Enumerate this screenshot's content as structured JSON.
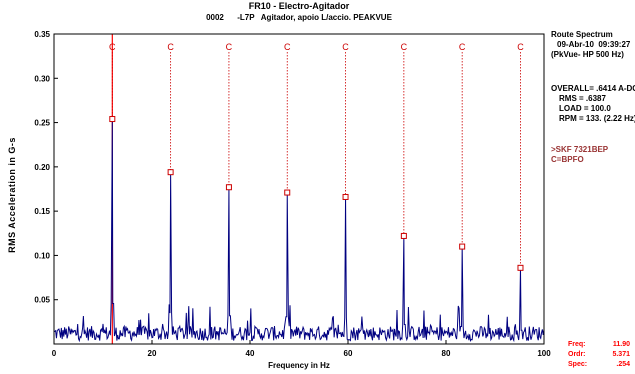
{
  "header": {
    "title": "FR10 - Electro-Agitador",
    "point_code": "0002",
    "point_id": "-L7P",
    "point_desc": "Agitador, apoio L/accio. PEAKVUE"
  },
  "side_panel": {
    "route_title": "Route Spectrum",
    "datetime": "09-Abr-10  09:39:27",
    "mode": "(PkVue- HP 500 Hz)",
    "overall": "OVERALL= .6414 A-DG",
    "rms": "RMS = .6387",
    "load": "LOAD = 100.0",
    "rpm": "RPM = 133. (2.22 Hz)",
    "bearing": ">SKF 7321BEP",
    "fault_legend": "C=BPFO"
  },
  "readout": {
    "freq_label": "Freq:",
    "freq_value": "11.90",
    "ordr_label": "Ordr:",
    "ordr_value": "5.371",
    "spec_label": "Spec:",
    "spec_value": ".254"
  },
  "chart_data": {
    "type": "line",
    "title": "FR10 - Electro-Agitador",
    "xlabel": "Frequency in Hz",
    "ylabel": "RMS Acceleration in G-s",
    "xlim": [
      0,
      100
    ],
    "ylim": [
      0,
      0.35
    ],
    "xticks": [
      "0",
      "20",
      "40",
      "60",
      "80",
      "100"
    ],
    "yticks": [
      "0.05",
      "0.10",
      "0.15",
      "0.20",
      "0.25",
      "0.30",
      "0.35"
    ],
    "grid": false,
    "cursor_x": 11.9,
    "series_color": "#000080",
    "marker_color": "#cc0000",
    "fault_label": "C",
    "peaks": [
      {
        "x": 11.9,
        "y": 0.254
      },
      {
        "x": 23.8,
        "y": 0.194
      },
      {
        "x": 35.7,
        "y": 0.177
      },
      {
        "x": 47.6,
        "y": 0.171
      },
      {
        "x": 59.5,
        "y": 0.166
      },
      {
        "x": 71.4,
        "y": 0.122
      },
      {
        "x": 83.3,
        "y": 0.11
      },
      {
        "x": 95.2,
        "y": 0.086
      }
    ],
    "noise_floor": 0.015,
    "noise_peak": 0.045
  }
}
